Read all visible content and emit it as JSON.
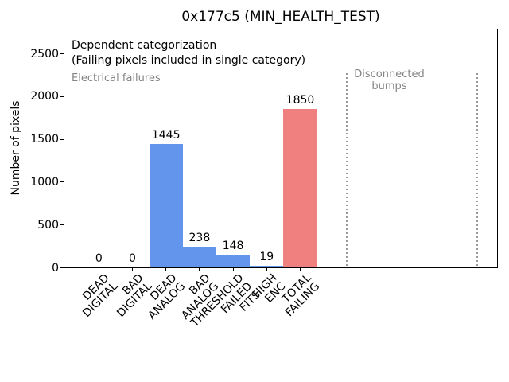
{
  "chart_data": {
    "type": "bar",
    "title": "0x177c5 (MIN_HEALTH_TEST)",
    "ylabel": "Number of pixels",
    "xlabel": "",
    "categories": [
      "DEAD\nDIGITAL",
      "BAD\nDIGITAL",
      "DEAD\nANALOG",
      "BAD\nANALOG",
      "THRESHOLD\nFAILED\nFITS",
      "HIGH\nENC",
      "TOTAL\nFAILING"
    ],
    "values": [
      0,
      0,
      1445,
      238,
      148,
      19,
      1850
    ],
    "value_labels": [
      "0",
      "0",
      "1445",
      "238",
      "148",
      "19",
      "1850"
    ],
    "bar_colors": [
      "#6495ed",
      "#6495ed",
      "#6495ed",
      "#6495ed",
      "#6495ed",
      "#6495ed",
      "#f08080"
    ],
    "yticks": [
      0,
      500,
      1000,
      1500,
      2000,
      2500
    ],
    "ylim": [
      0,
      2790
    ],
    "grid": false,
    "legend": "none",
    "annotations": {
      "dependent_line1": "Dependent categorization",
      "dependent_line2": "(Failing pixels included in single category)",
      "electrical": "Electrical failures",
      "disconnected_line1": "Disconnected",
      "disconnected_line2": "bumps"
    },
    "region_dividers": {
      "style": "dotted",
      "color": "#9a9a9a",
      "x_category_units": [
        7.35,
        11.24
      ]
    },
    "colors": {
      "electrical_bar": "#6495ed",
      "total_failing_bar": "#f08080",
      "annotation_gray": "#848484",
      "axis": "#000000"
    }
  }
}
